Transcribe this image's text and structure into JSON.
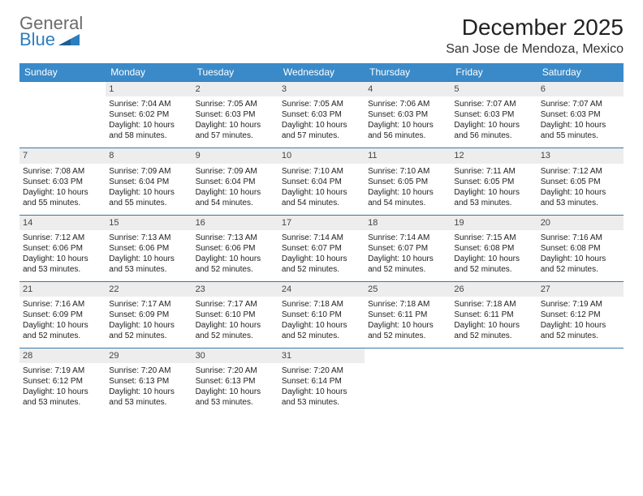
{
  "brand": {
    "line1": "General",
    "line2": "Blue"
  },
  "header": {
    "title": "December 2025",
    "location": "San Jose de Mendoza, Mexico"
  },
  "colors": {
    "header_bg": "#3a8ac9",
    "header_text": "#ffffff",
    "row_rule": "#3a78a8",
    "daynum_bg": "#ededed",
    "brand_gray": "#6b6b6b",
    "brand_blue": "#2b7fbf"
  },
  "weekdays": [
    "Sunday",
    "Monday",
    "Tuesday",
    "Wednesday",
    "Thursday",
    "Friday",
    "Saturday"
  ],
  "weeks": [
    [
      null,
      {
        "n": "1",
        "sunrise": "7:04 AM",
        "sunset": "6:02 PM",
        "daylight": "10 hours and 58 minutes."
      },
      {
        "n": "2",
        "sunrise": "7:05 AM",
        "sunset": "6:03 PM",
        "daylight": "10 hours and 57 minutes."
      },
      {
        "n": "3",
        "sunrise": "7:05 AM",
        "sunset": "6:03 PM",
        "daylight": "10 hours and 57 minutes."
      },
      {
        "n": "4",
        "sunrise": "7:06 AM",
        "sunset": "6:03 PM",
        "daylight": "10 hours and 56 minutes."
      },
      {
        "n": "5",
        "sunrise": "7:07 AM",
        "sunset": "6:03 PM",
        "daylight": "10 hours and 56 minutes."
      },
      {
        "n": "6",
        "sunrise": "7:07 AM",
        "sunset": "6:03 PM",
        "daylight": "10 hours and 55 minutes."
      }
    ],
    [
      {
        "n": "7",
        "sunrise": "7:08 AM",
        "sunset": "6:03 PM",
        "daylight": "10 hours and 55 minutes."
      },
      {
        "n": "8",
        "sunrise": "7:09 AM",
        "sunset": "6:04 PM",
        "daylight": "10 hours and 55 minutes."
      },
      {
        "n": "9",
        "sunrise": "7:09 AM",
        "sunset": "6:04 PM",
        "daylight": "10 hours and 54 minutes."
      },
      {
        "n": "10",
        "sunrise": "7:10 AM",
        "sunset": "6:04 PM",
        "daylight": "10 hours and 54 minutes."
      },
      {
        "n": "11",
        "sunrise": "7:10 AM",
        "sunset": "6:05 PM",
        "daylight": "10 hours and 54 minutes."
      },
      {
        "n": "12",
        "sunrise": "7:11 AM",
        "sunset": "6:05 PM",
        "daylight": "10 hours and 53 minutes."
      },
      {
        "n": "13",
        "sunrise": "7:12 AM",
        "sunset": "6:05 PM",
        "daylight": "10 hours and 53 minutes."
      }
    ],
    [
      {
        "n": "14",
        "sunrise": "7:12 AM",
        "sunset": "6:06 PM",
        "daylight": "10 hours and 53 minutes."
      },
      {
        "n": "15",
        "sunrise": "7:13 AM",
        "sunset": "6:06 PM",
        "daylight": "10 hours and 53 minutes."
      },
      {
        "n": "16",
        "sunrise": "7:13 AM",
        "sunset": "6:06 PM",
        "daylight": "10 hours and 52 minutes."
      },
      {
        "n": "17",
        "sunrise": "7:14 AM",
        "sunset": "6:07 PM",
        "daylight": "10 hours and 52 minutes."
      },
      {
        "n": "18",
        "sunrise": "7:14 AM",
        "sunset": "6:07 PM",
        "daylight": "10 hours and 52 minutes."
      },
      {
        "n": "19",
        "sunrise": "7:15 AM",
        "sunset": "6:08 PM",
        "daylight": "10 hours and 52 minutes."
      },
      {
        "n": "20",
        "sunrise": "7:16 AM",
        "sunset": "6:08 PM",
        "daylight": "10 hours and 52 minutes."
      }
    ],
    [
      {
        "n": "21",
        "sunrise": "7:16 AM",
        "sunset": "6:09 PM",
        "daylight": "10 hours and 52 minutes."
      },
      {
        "n": "22",
        "sunrise": "7:17 AM",
        "sunset": "6:09 PM",
        "daylight": "10 hours and 52 minutes."
      },
      {
        "n": "23",
        "sunrise": "7:17 AM",
        "sunset": "6:10 PM",
        "daylight": "10 hours and 52 minutes."
      },
      {
        "n": "24",
        "sunrise": "7:18 AM",
        "sunset": "6:10 PM",
        "daylight": "10 hours and 52 minutes."
      },
      {
        "n": "25",
        "sunrise": "7:18 AM",
        "sunset": "6:11 PM",
        "daylight": "10 hours and 52 minutes."
      },
      {
        "n": "26",
        "sunrise": "7:18 AM",
        "sunset": "6:11 PM",
        "daylight": "10 hours and 52 minutes."
      },
      {
        "n": "27",
        "sunrise": "7:19 AM",
        "sunset": "6:12 PM",
        "daylight": "10 hours and 52 minutes."
      }
    ],
    [
      {
        "n": "28",
        "sunrise": "7:19 AM",
        "sunset": "6:12 PM",
        "daylight": "10 hours and 53 minutes."
      },
      {
        "n": "29",
        "sunrise": "7:20 AM",
        "sunset": "6:13 PM",
        "daylight": "10 hours and 53 minutes."
      },
      {
        "n": "30",
        "sunrise": "7:20 AM",
        "sunset": "6:13 PM",
        "daylight": "10 hours and 53 minutes."
      },
      {
        "n": "31",
        "sunrise": "7:20 AM",
        "sunset": "6:14 PM",
        "daylight": "10 hours and 53 minutes."
      },
      null,
      null,
      null
    ]
  ],
  "labels": {
    "sunrise": "Sunrise:",
    "sunset": "Sunset:",
    "daylight": "Daylight:"
  }
}
